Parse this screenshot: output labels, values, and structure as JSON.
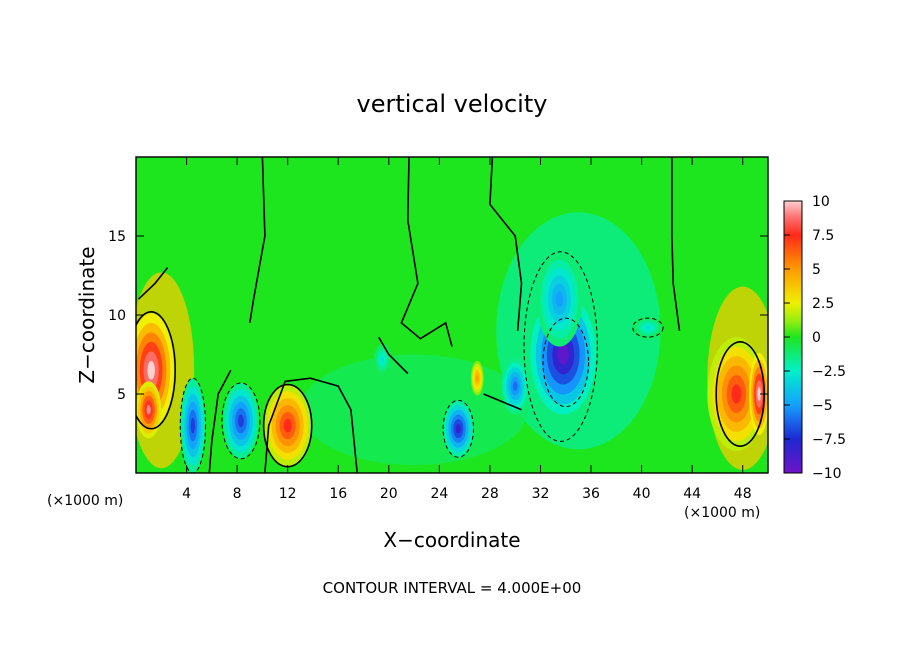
{
  "chart_data": {
    "type": "heatmap",
    "title": "vertical velocity",
    "xlabel": "X−coordinate",
    "ylabel": "Z−coordinate",
    "x_unit": "(×1000 m)",
    "y_unit": "(×1000 m)",
    "xlim": [
      0,
      50
    ],
    "ylim": [
      0,
      20
    ],
    "x_ticks": [
      4,
      8,
      12,
      16,
      20,
      24,
      28,
      32,
      36,
      40,
      44,
      48
    ],
    "x_tick_labels": [
      "4",
      "8",
      "12",
      "16",
      "20",
      "24",
      "28",
      "32",
      "36",
      "40",
      "44",
      "48"
    ],
    "y_ticks": [
      5,
      10,
      15
    ],
    "y_tick_labels": [
      "5",
      "10",
      "15"
    ],
    "colorbar": {
      "min": -10,
      "max": 10,
      "ticks": [
        10,
        7.5,
        5,
        2.5,
        0,
        -2.5,
        -5,
        -7.5,
        -10
      ],
      "tick_labels": [
        "10",
        "7.5",
        "5",
        "2.5",
        "0",
        "−2.5",
        "−5",
        "−7.5",
        "−10"
      ]
    },
    "contour_interval": 4.0,
    "footer": "CONTOUR INTERVAL = 4.000E+00",
    "features": [
      {
        "x": 1.2,
        "z": 6.5,
        "value": 10
      },
      {
        "x": 1.0,
        "z": 4.0,
        "value": 9
      },
      {
        "x": 4.5,
        "z": 3.0,
        "value": -7
      },
      {
        "x": 8.3,
        "z": 3.3,
        "value": -7
      },
      {
        "x": 12.0,
        "z": 3.0,
        "value": 7.5
      },
      {
        "x": 19.5,
        "z": 7.2,
        "value": -3
      },
      {
        "x": 25.5,
        "z": 2.8,
        "value": -8
      },
      {
        "x": 27.0,
        "z": 6.0,
        "value": 5
      },
      {
        "x": 30.0,
        "z": 5.5,
        "value": -6
      },
      {
        "x": 33.8,
        "z": 7.5,
        "value": -9.5
      },
      {
        "x": 33.5,
        "z": 11.0,
        "value": -5
      },
      {
        "x": 40.5,
        "z": 9.2,
        "value": -3
      },
      {
        "x": 47.5,
        "z": 5.0,
        "value": 7.5
      },
      {
        "x": 49.3,
        "z": 5.0,
        "value": 10
      }
    ]
  }
}
